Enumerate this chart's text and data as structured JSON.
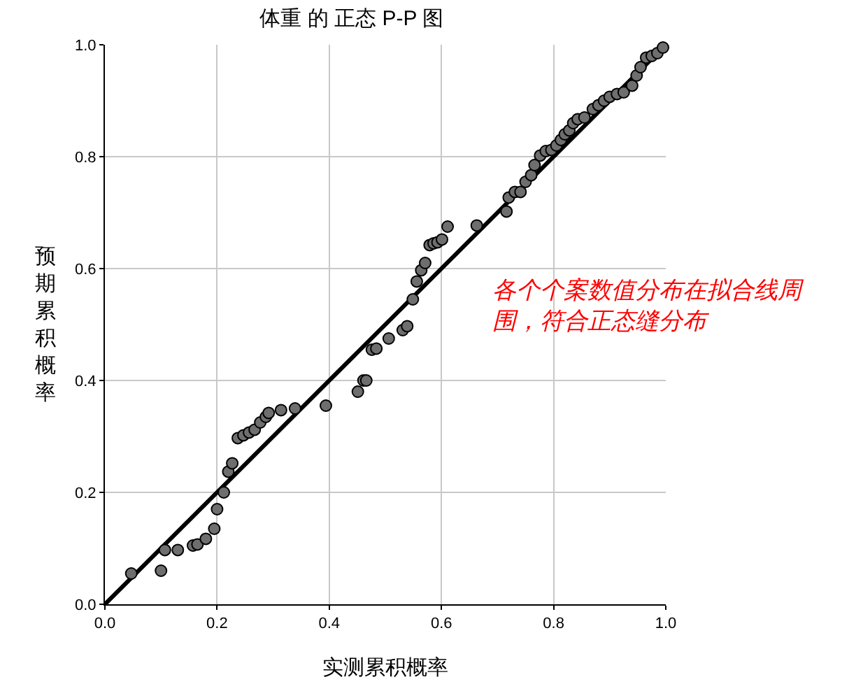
{
  "chart_data": {
    "type": "scatter",
    "title": "体重 的 正态 P-P 图",
    "xlabel": "实测累积概率",
    "ylabel": "预期累积概率",
    "annotations": [
      "各个个案数值分布在拟合线周围，符合正态缝分布"
    ],
    "xlim": [
      0,
      1
    ],
    "ylim": [
      0,
      1
    ],
    "xticks": [
      {
        "value": 0,
        "label": "0.0"
      },
      {
        "value": 0.2,
        "label": "0.2"
      },
      {
        "value": 0.4,
        "label": "0.4"
      },
      {
        "value": 0.6,
        "label": "0.6"
      },
      {
        "value": 0.8,
        "label": "0.8"
      },
      {
        "value": 1,
        "label": "1.0"
      }
    ],
    "yticks": [
      {
        "value": 0,
        "label": "0.0"
      },
      {
        "value": 0.2,
        "label": "0.2"
      },
      {
        "value": 0.4,
        "label": "0.4"
      },
      {
        "value": 0.6,
        "label": "0.6"
      },
      {
        "value": 0.8,
        "label": "0.8"
      },
      {
        "value": 1,
        "label": "1.0"
      }
    ],
    "grid": true,
    "marker": "circle",
    "series": [
      {
        "color": "#6e6e6e",
        "x": [
          0.047,
          0.1,
          0.107,
          0.13,
          0.157,
          0.165,
          0.18,
          0.195,
          0.2,
          0.212,
          0.22,
          0.227,
          0.237,
          0.247,
          0.257,
          0.267,
          0.277,
          0.287,
          0.292,
          0.314,
          0.339,
          0.394,
          0.451,
          0.461,
          0.466,
          0.476,
          0.484,
          0.506,
          0.531,
          0.539,
          0.549,
          0.556,
          0.564,
          0.571,
          0.579,
          0.586,
          0.593,
          0.601,
          0.611,
          0.663,
          0.716,
          0.72,
          0.731,
          0.741,
          0.75,
          0.76,
          0.766,
          0.776,
          0.786,
          0.796,
          0.805,
          0.813,
          0.82,
          0.828,
          0.835,
          0.843,
          0.855,
          0.87,
          0.88,
          0.89,
          0.9,
          0.913,
          0.925,
          0.94,
          0.948,
          0.955,
          0.965,
          0.975,
          0.985,
          0.995
        ],
        "values": [
          0.055,
          0.06,
          0.097,
          0.097,
          0.105,
          0.107,
          0.117,
          0.135,
          0.17,
          0.2,
          0.237,
          0.252,
          0.297,
          0.302,
          0.307,
          0.312,
          0.325,
          0.335,
          0.342,
          0.347,
          0.35,
          0.355,
          0.38,
          0.4,
          0.4,
          0.455,
          0.457,
          0.475,
          0.49,
          0.497,
          0.545,
          0.577,
          0.597,
          0.61,
          0.642,
          0.645,
          0.647,
          0.652,
          0.675,
          0.677,
          0.702,
          0.727,
          0.737,
          0.737,
          0.755,
          0.767,
          0.785,
          0.802,
          0.81,
          0.812,
          0.82,
          0.83,
          0.84,
          0.847,
          0.86,
          0.867,
          0.87,
          0.885,
          0.892,
          0.9,
          0.907,
          0.912,
          0.915,
          0.927,
          0.945,
          0.96,
          0.977,
          0.98,
          0.985,
          0.995
        ]
      },
      {
        "type": "line",
        "color": "#000000",
        "x": [
          0,
          1
        ],
        "values": [
          0,
          1
        ],
        "marker": "none"
      }
    ]
  }
}
